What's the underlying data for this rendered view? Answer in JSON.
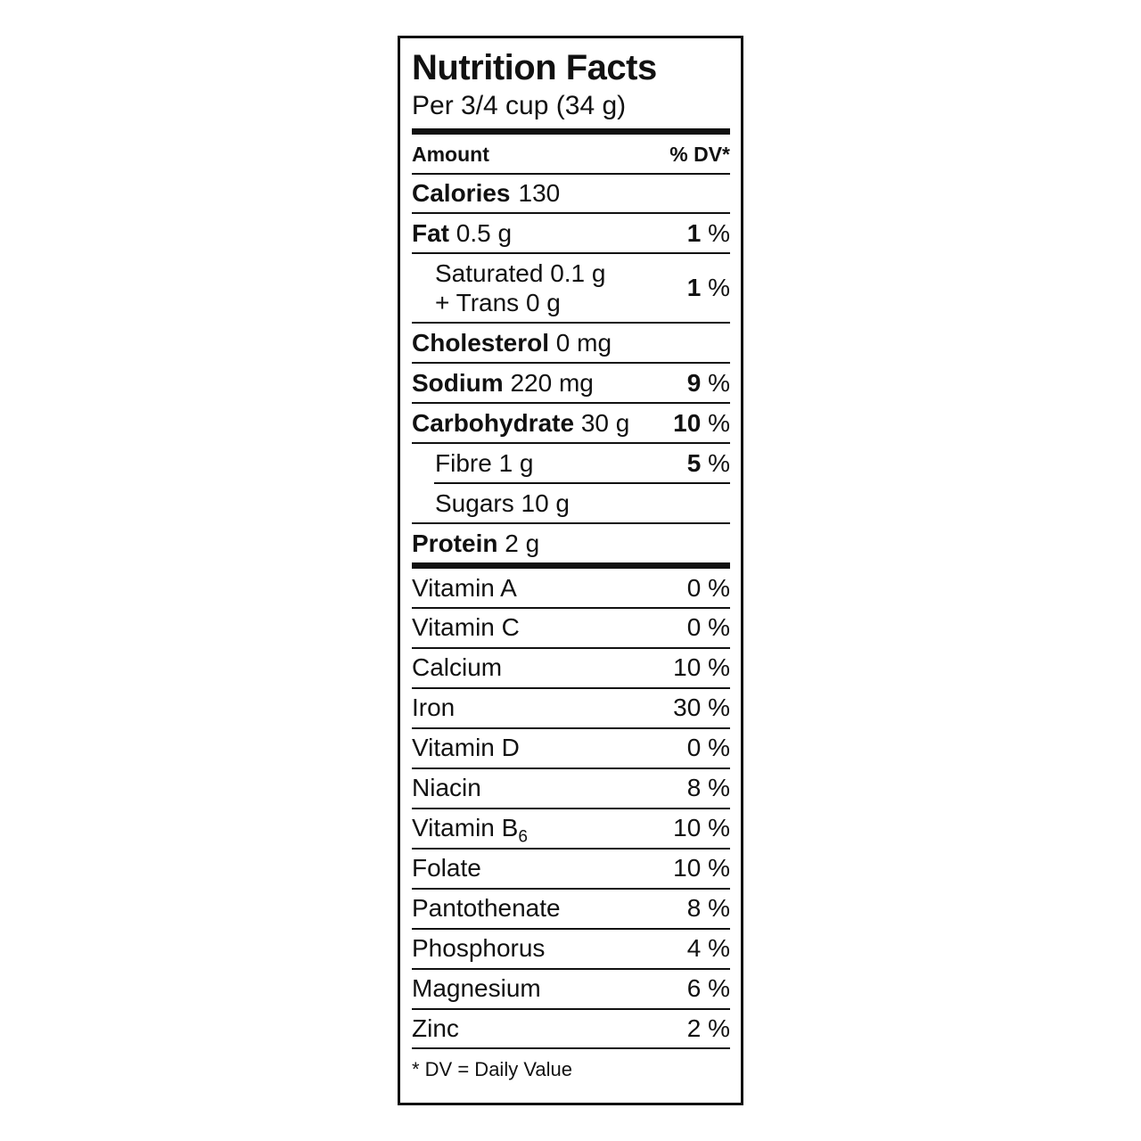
{
  "label": {
    "title": "Nutrition Facts",
    "serving": "Per 3/4 cup (34 g)",
    "columns": {
      "amount": "Amount",
      "daily_value": "% DV*"
    },
    "percent": "%",
    "calories": {
      "name": "Calories",
      "value": "130"
    },
    "nutrients": [
      {
        "label": "Fat",
        "bold": true,
        "amount": "0.5 g",
        "dv": "1"
      },
      {
        "lines": [
          "Saturated 0.1 g",
          "+ Trans 0 g"
        ],
        "indent": true,
        "dv": "1"
      },
      {
        "label": "Cholesterol",
        "bold": true,
        "amount": "0 mg",
        "dv": ""
      },
      {
        "label": "Sodium",
        "bold": true,
        "amount": "220 mg",
        "dv": "9"
      },
      {
        "label": "Carbohydrate",
        "bold": true,
        "amount": "30 g",
        "dv": "10"
      },
      {
        "label": "Fibre",
        "bold": false,
        "amount": "1 g",
        "dv": "5",
        "indent": true,
        "indent_divider_after": true
      },
      {
        "label": "Sugars",
        "bold": false,
        "amount": "10 g",
        "dv": "",
        "indent": true
      },
      {
        "label": "Protein",
        "bold": true,
        "amount": "2 g",
        "dv": ""
      }
    ],
    "micronutrients": [
      {
        "name": "Vitamin A",
        "dv": "0"
      },
      {
        "name": "Vitamin C",
        "dv": "0"
      },
      {
        "name": "Calcium",
        "dv": "10"
      },
      {
        "name": "Iron",
        "dv": "30"
      },
      {
        "name": "Vitamin D",
        "dv": "0"
      },
      {
        "name": "Niacin",
        "dv": "8"
      },
      {
        "name": "Vitamin B",
        "subscript": "6",
        "dv": "10"
      },
      {
        "name": "Folate",
        "dv": "10"
      },
      {
        "name": "Pantothenate",
        "dv": "8"
      },
      {
        "name": "Phosphorus",
        "dv": "4"
      },
      {
        "name": "Magnesium",
        "dv": "6"
      },
      {
        "name": "Zinc",
        "dv": "2"
      }
    ],
    "footnote": "* DV = Daily Value"
  }
}
